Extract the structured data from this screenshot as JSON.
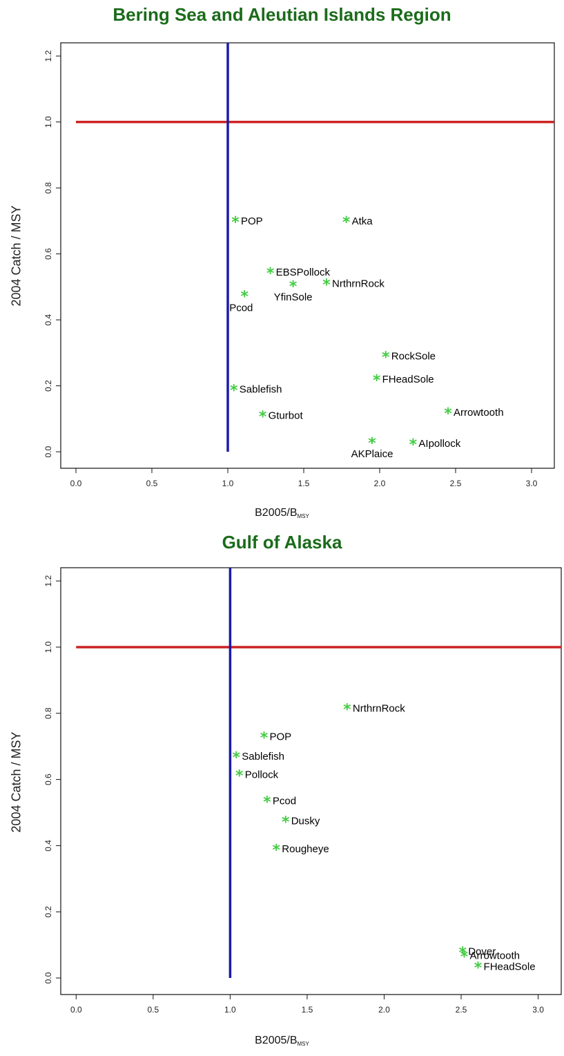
{
  "colors": {
    "title": "#1b6b1b",
    "hline": "#cc2222",
    "vline": "#1a1aa8",
    "point": "#44cc44",
    "axis": "#111111"
  },
  "chart_data": [
    {
      "type": "scatter",
      "title": "Bering Sea and Aleutian Islands Region",
      "xlabel": {
        "main": "B2005/B",
        "sub": "MSY"
      },
      "ylabel": "2004 Catch / MSY",
      "xlim": [
        -0.1,
        3.15
      ],
      "ylim": [
        -0.05,
        1.24
      ],
      "xticks": [
        "0.0",
        "0.5",
        "1.0",
        "1.5",
        "2.0",
        "2.5",
        "3.0"
      ],
      "yticks": [
        "0.0",
        "0.2",
        "0.4",
        "0.6",
        "0.8",
        "1.0",
        "1.2"
      ],
      "hline": 1.0,
      "vline": 1.0,
      "points": [
        {
          "label": "POP",
          "x": 1.05,
          "y": 0.7,
          "pos": "right"
        },
        {
          "label": "Atka",
          "x": 1.78,
          "y": 0.7,
          "pos": "right"
        },
        {
          "label": "EBSPollock",
          "x": 1.28,
          "y": 0.545,
          "pos": "right"
        },
        {
          "label": "NrthrnRock",
          "x": 1.65,
          "y": 0.51,
          "pos": "right"
        },
        {
          "label": "YfinSole",
          "x": 1.43,
          "y": 0.505,
          "pos": "below"
        },
        {
          "label": "Pcod",
          "x": 1.11,
          "y": 0.475,
          "pos": "belowleft"
        },
        {
          "label": "RockSole",
          "x": 2.04,
          "y": 0.29,
          "pos": "right"
        },
        {
          "label": "FHeadSole",
          "x": 1.98,
          "y": 0.22,
          "pos": "right"
        },
        {
          "label": "Sablefish",
          "x": 1.04,
          "y": 0.19,
          "pos": "right"
        },
        {
          "label": "Arrowtooth",
          "x": 2.45,
          "y": 0.12,
          "pos": "right"
        },
        {
          "label": "Gturbot",
          "x": 1.23,
          "y": 0.11,
          "pos": "right"
        },
        {
          "label": "AKPlaice",
          "x": 1.95,
          "y": 0.03,
          "pos": "below"
        },
        {
          "label": "AIpollock",
          "x": 2.22,
          "y": 0.025,
          "pos": "right"
        }
      ]
    },
    {
      "type": "scatter",
      "title": "Gulf of Alaska",
      "xlabel": {
        "main": "B2005/B",
        "sub": "MSY"
      },
      "ylabel": "2004 Catch / MSY",
      "xlim": [
        -0.1,
        3.15
      ],
      "ylim": [
        -0.05,
        1.24
      ],
      "xticks": [
        "0.0",
        "0.5",
        "1.0",
        "1.5",
        "2.0",
        "2.5",
        "3.0"
      ],
      "yticks": [
        "0.0",
        "0.2",
        "0.4",
        "0.6",
        "0.8",
        "1.0",
        "1.2"
      ],
      "hline": 1.0,
      "vline": 1.0,
      "points": [
        {
          "label": "NrthrnRock",
          "x": 1.76,
          "y": 0.815,
          "pos": "right"
        },
        {
          "label": "POP",
          "x": 1.22,
          "y": 0.73,
          "pos": "right"
        },
        {
          "label": "Sablefish",
          "x": 1.04,
          "y": 0.67,
          "pos": "right"
        },
        {
          "label": "Pollock",
          "x": 1.06,
          "y": 0.615,
          "pos": "right"
        },
        {
          "label": "Pcod",
          "x": 1.24,
          "y": 0.535,
          "pos": "right"
        },
        {
          "label": "Dusky",
          "x": 1.36,
          "y": 0.475,
          "pos": "right"
        },
        {
          "label": "Rougheye",
          "x": 1.3,
          "y": 0.39,
          "pos": "right"
        },
        {
          "label": "Dover",
          "x": 2.51,
          "y": 0.08,
          "pos": "right"
        },
        {
          "label": "Arrowtooth",
          "x": 2.52,
          "y": 0.068,
          "pos": "right"
        },
        {
          "label": "FHeadSole",
          "x": 2.61,
          "y": 0.035,
          "pos": "right"
        }
      ]
    }
  ]
}
